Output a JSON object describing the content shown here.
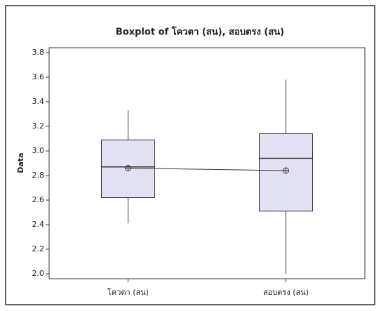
{
  "chart_data": {
    "type": "box",
    "title": "Boxplot of โควตา (สน), สอบตรง (สน)",
    "ylabel": "Data",
    "categories": [
      "โควตา (สน)",
      "สอบตรง (สน)"
    ],
    "min": [
      2.41,
      2.0
    ],
    "q1": [
      2.62,
      2.51
    ],
    "median": [
      2.87,
      2.94
    ],
    "q3": [
      3.09,
      3.14
    ],
    "max": [
      3.33,
      3.58
    ],
    "mean": [
      2.86,
      2.84
    ],
    "color": "#e2e2f2",
    "ylim": [
      1.96,
      3.84
    ],
    "yticks": [
      {
        "value": 2,
        "label": "2.0"
      },
      2.2,
      2.4,
      2.6,
      2.8,
      {
        "value": 3,
        "label": "3.0"
      },
      3.2,
      3.4,
      3.6,
      3.8
    ]
  }
}
